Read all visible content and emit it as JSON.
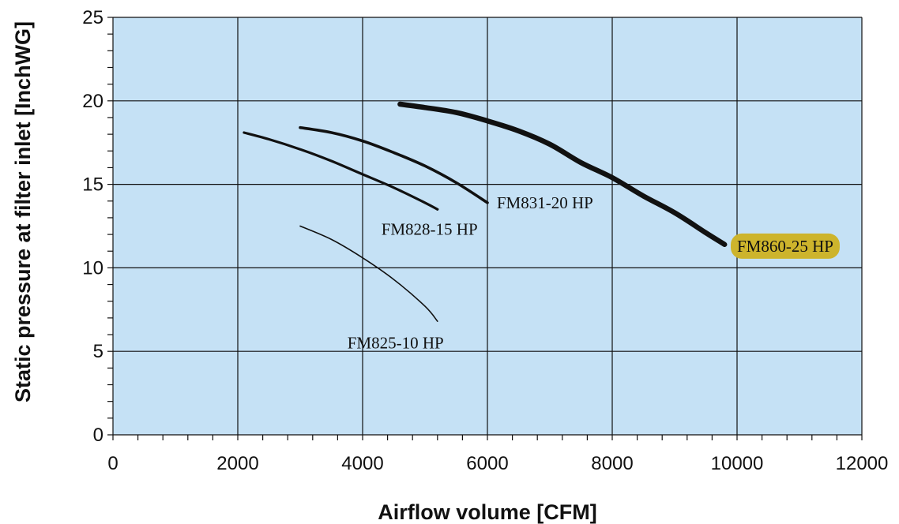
{
  "chart_data": {
    "type": "line",
    "title": "",
    "xlabel": "Airflow volume [CFM]",
    "ylabel": "Static pressure at filter inlet [InchWG]",
    "xlim": [
      0,
      12000
    ],
    "ylim": [
      0,
      25
    ],
    "xticks": [
      "0",
      "2000",
      "4000",
      "6000",
      "8000",
      "10000",
      "12000"
    ],
    "yticks": [
      "0",
      "5",
      "10",
      "15",
      "20",
      "25"
    ],
    "grid": true,
    "plot_background": "#c5e1f5",
    "line_color": "#111111",
    "highlight_color": "#cdb42c",
    "series": [
      {
        "name": "FM825-10 HP",
        "x": [
          3000,
          3500,
          4000,
          4500,
          5000,
          5200
        ],
        "y": [
          12.5,
          11.7,
          10.6,
          9.3,
          7.7,
          6.8
        ]
      },
      {
        "name": "FM828-15 HP",
        "x": [
          2100,
          2500,
          3000,
          3500,
          4000,
          4500,
          5000,
          5200
        ],
        "y": [
          18.1,
          17.7,
          17.1,
          16.4,
          15.6,
          14.8,
          13.9,
          13.5
        ]
      },
      {
        "name": "FM831-20 HP",
        "x": [
          3000,
          3500,
          4000,
          4500,
          5000,
          5500,
          6000
        ],
        "y": [
          18.4,
          18.1,
          17.6,
          16.9,
          16.1,
          15.1,
          13.9
        ]
      },
      {
        "name": "FM860-25 HP",
        "highlight": true,
        "x": [
          4600,
          5000,
          5500,
          6000,
          6500,
          7000,
          7500,
          8000,
          8500,
          9000,
          9500,
          9800
        ],
        "y": [
          19.8,
          19.6,
          19.3,
          18.8,
          18.2,
          17.4,
          16.3,
          15.4,
          14.3,
          13.3,
          12.1,
          11.4
        ]
      }
    ]
  }
}
